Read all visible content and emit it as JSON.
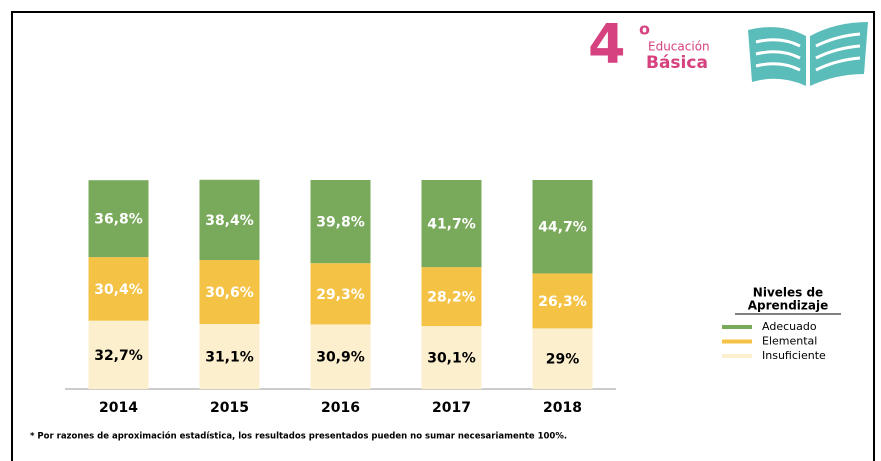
{
  "logo": {
    "number": "4",
    "superscript": "o",
    "line1": "Educación",
    "line2": "Básica"
  },
  "chart_data": {
    "type": "stacked_bar",
    "categories": [
      "2014",
      "2015",
      "2016",
      "2017",
      "2018"
    ],
    "ylim": [
      0,
      100
    ],
    "series": [
      {
        "name": "Insuficiente",
        "color": "#fcefcd",
        "label_color": "#000000",
        "values": [
          32.7,
          31.1,
          30.9,
          30.1,
          29
        ],
        "value_labels": [
          "32,7%",
          "31,1%",
          "30,9%",
          "30,1%",
          "29%"
        ]
      },
      {
        "name": "Elemental",
        "color": "#f4c245",
        "label_color": "#ffffff",
        "values": [
          30.4,
          30.6,
          29.3,
          28.2,
          26.3
        ],
        "value_labels": [
          "30,4%",
          "30,6%",
          "29,3%",
          "28,2%",
          "26,3%"
        ]
      },
      {
        "name": "Adecuado",
        "color": "#79a95a",
        "label_color": "#ffffff",
        "values": [
          36.8,
          38.4,
          39.8,
          41.7,
          44.7
        ],
        "value_labels": [
          "36,8%",
          "38,4%",
          "39,8%",
          "41,7%",
          "44,7%"
        ]
      }
    ],
    "legend": {
      "title_line1": "Niveles de",
      "title_line2": "Aprendizaje",
      "position": "right"
    },
    "footnote": "* Por razones de aproximación estadística, los resultados presentados pueden no sumar necesariamente 100%."
  }
}
